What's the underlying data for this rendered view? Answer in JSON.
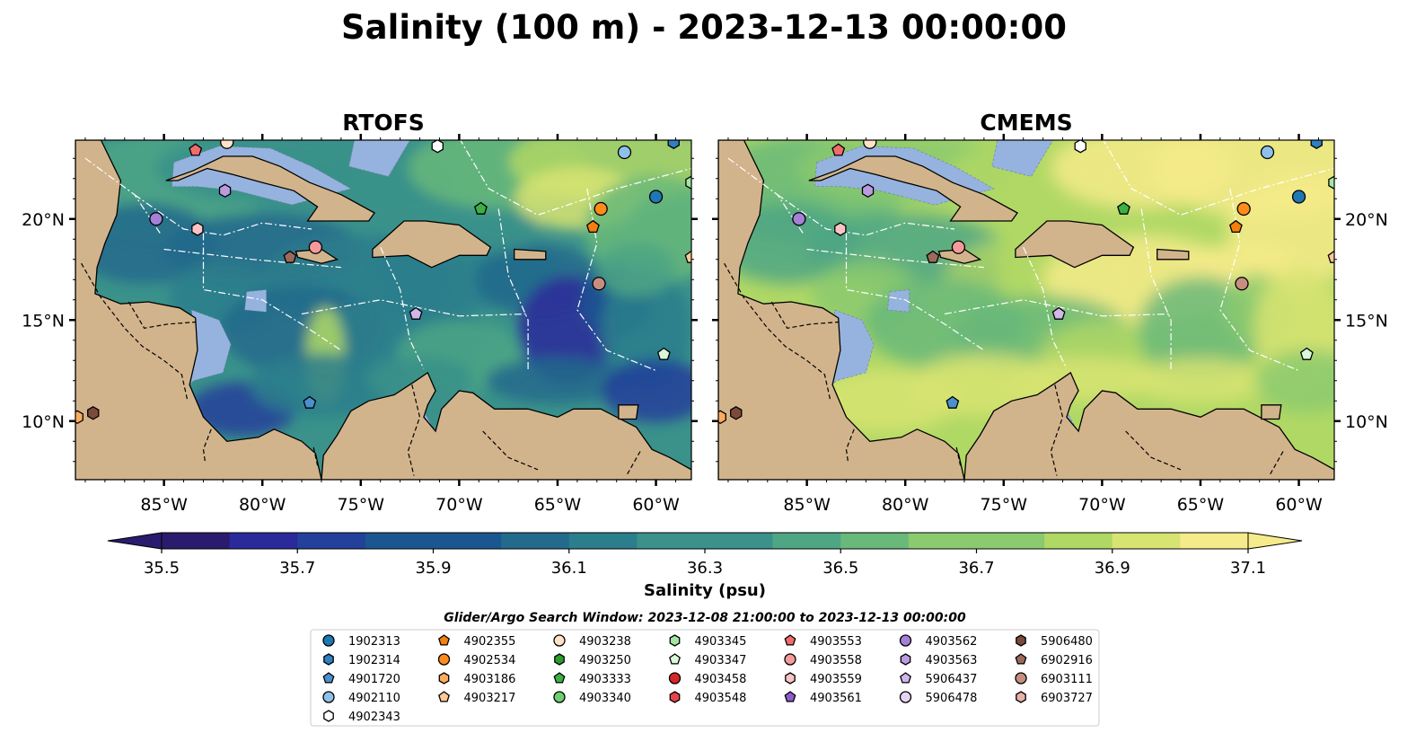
{
  "figure": {
    "title": "Salinity (100 m) - 2023-12-13 00:00:00"
  },
  "colors": {
    "land": "#d2b48c",
    "shelf": "#95b3de",
    "deep_ocean": "#2a1b6e",
    "colormap": [
      "#2a1b6e",
      "#2b2a9a",
      "#23409a",
      "#1c5690",
      "#236a8c",
      "#2c7e8c",
      "#3a928a",
      "#4ea685",
      "#68b97a",
      "#8bca6e",
      "#b0d865",
      "#d8e472",
      "#f6eb8a"
    ]
  },
  "panels": [
    {
      "title": "RTOFS",
      "model": "rtofs"
    },
    {
      "title": "CMEMS",
      "model": "cmems"
    }
  ],
  "axes": {
    "lon_ticks": [
      "85°W",
      "80°W",
      "75°W",
      "70°W",
      "65°W",
      "60°W"
    ],
    "lon_values": [
      -85,
      -80,
      -75,
      -70,
      -65,
      -60
    ],
    "lat_ticks": [
      "20°N",
      "15°N",
      "10°N"
    ],
    "lat_values": [
      20,
      15,
      10
    ],
    "lon_range": [
      -89.5,
      -58.2
    ],
    "lat_range": [
      7.1,
      23.9
    ]
  },
  "colorbar": {
    "label": "Salinity (psu)",
    "ticks": [
      "35.5",
      "35.7",
      "35.9",
      "36.1",
      "36.3",
      "36.5",
      "36.7",
      "36.9",
      "37.1"
    ],
    "range": [
      35.5,
      37.1
    ],
    "step": 0.1,
    "extend": "both"
  },
  "legend": {
    "title": "Glider/Argo Search Window: 2023-12-08 21:00:00 to 2023-12-13 00:00:00",
    "items": [
      {
        "id": "1902313",
        "color": "#1f77b4",
        "marker": "circle"
      },
      {
        "id": "1902314",
        "color": "#2f7fc1",
        "marker": "hexagon"
      },
      {
        "id": "4901720",
        "color": "#4a90d0",
        "marker": "pentagon"
      },
      {
        "id": "4902110",
        "color": "#8ec1ea",
        "marker": "circle"
      },
      {
        "id": "4902343",
        "color": "#ffffff",
        "marker": "hexagon"
      },
      {
        "id": "4902355",
        "color": "#f57f0e",
        "marker": "pentagon"
      },
      {
        "id": "4902534",
        "color": "#ff8c1a",
        "marker": "circle"
      },
      {
        "id": "4903186",
        "color": "#ffab5e",
        "marker": "hexagon"
      },
      {
        "id": "4903217",
        "color": "#ffc896",
        "marker": "pentagon"
      },
      {
        "id": "4903238",
        "color": "#ffe3c8",
        "marker": "circle"
      },
      {
        "id": "4903250",
        "color": "#2a9e2a",
        "marker": "hexagon"
      },
      {
        "id": "4903333",
        "color": "#3cb043",
        "marker": "pentagon"
      },
      {
        "id": "4903340",
        "color": "#6fcf6f",
        "marker": "circle"
      },
      {
        "id": "4903345",
        "color": "#a3e6a3",
        "marker": "hexagon"
      },
      {
        "id": "4903347",
        "color": "#d8f8d8",
        "marker": "pentagon"
      },
      {
        "id": "4903458",
        "color": "#d62728",
        "marker": "circle"
      },
      {
        "id": "4903548",
        "color": "#e8454a",
        "marker": "hexagon"
      },
      {
        "id": "4903553",
        "color": "#f26b6b",
        "marker": "pentagon"
      },
      {
        "id": "4903558",
        "color": "#f59a9a",
        "marker": "circle"
      },
      {
        "id": "4903559",
        "color": "#fbc4c4",
        "marker": "hexagon"
      },
      {
        "id": "4903561",
        "color": "#8c5cc9",
        "marker": "pentagon"
      },
      {
        "id": "4903562",
        "color": "#a67fd6",
        "marker": "circle"
      },
      {
        "id": "4903563",
        "color": "#bb9ae0",
        "marker": "hexagon"
      },
      {
        "id": "5906437",
        "color": "#d1b6ea",
        "marker": "pentagon"
      },
      {
        "id": "5906478",
        "color": "#e7d4f5",
        "marker": "circle"
      },
      {
        "id": "5906480",
        "color": "#7b4b3a",
        "marker": "hexagon"
      },
      {
        "id": "6902916",
        "color": "#9b6a5a",
        "marker": "pentagon"
      },
      {
        "id": "6903111",
        "color": "#c78e80",
        "marker": "circle"
      },
      {
        "id": "6903727",
        "color": "#e6b3a6",
        "marker": "hexagon"
      }
    ]
  },
  "chart_data": [
    {
      "type": "heatmap",
      "title": "RTOFS",
      "variable": "Salinity (100 m)",
      "units": "psu",
      "xlim": [
        -89.5,
        -58.2
      ],
      "ylim": [
        7.1,
        23.9
      ],
      "color_range": [
        35.5,
        37.1
      ],
      "summary": {
        "typical_open_caribbean": 36.2,
        "min_patch": 35.6,
        "max_filament": 36.9
      }
    },
    {
      "type": "heatmap",
      "title": "CMEMS",
      "variable": "Salinity (100 m)",
      "units": "psu",
      "xlim": [
        -89.5,
        -58.2
      ],
      "ylim": [
        7.1,
        23.9
      ],
      "color_range": [
        35.5,
        37.1
      ],
      "summary": {
        "typical_open_caribbean": 36.8,
        "min_patch": 36.1,
        "max_filament": 37.1
      }
    }
  ],
  "floats": [
    {
      "id": "4903553",
      "lon": -83.4,
      "lat": 23.4
    },
    {
      "id": "4903238",
      "lon": -81.8,
      "lat": 23.8
    },
    {
      "id": "4902343",
      "lon": -71.1,
      "lat": 23.6
    },
    {
      "id": "4902110",
      "lon": -61.6,
      "lat": 23.3
    },
    {
      "id": "1902314",
      "lon": -59.1,
      "lat": 23.8
    },
    {
      "id": "4903563",
      "lon": -81.9,
      "lat": 21.4
    },
    {
      "id": "4903562",
      "lon": -85.4,
      "lat": 20.0
    },
    {
      "id": "4903559",
      "lon": -83.3,
      "lat": 19.5
    },
    {
      "id": "4903333",
      "lon": -68.9,
      "lat": 20.5
    },
    {
      "id": "4902534",
      "lon": -62.8,
      "lat": 20.5
    },
    {
      "id": "4902355",
      "lon": -63.2,
      "lat": 19.6
    },
    {
      "id": "1902313",
      "lon": -60.0,
      "lat": 21.1
    },
    {
      "id": "4903345",
      "lon": -58.2,
      "lat": 21.8
    },
    {
      "id": "4903558",
      "lon": -77.3,
      "lat": 18.6
    },
    {
      "id": "6902916",
      "lon": -78.6,
      "lat": 18.1
    },
    {
      "id": "4903217",
      "lon": -58.2,
      "lat": 18.1
    },
    {
      "id": "6903111",
      "lon": -62.9,
      "lat": 16.8
    },
    {
      "id": "5906437",
      "lon": -72.2,
      "lat": 15.3
    },
    {
      "id": "4903347",
      "lon": -59.6,
      "lat": 13.3
    },
    {
      "id": "4901720",
      "lon": -77.6,
      "lat": 10.9
    },
    {
      "id": "4903186",
      "lon": -89.4,
      "lat": 10.2
    },
    {
      "id": "5906480",
      "lon": -88.6,
      "lat": 10.4
    }
  ]
}
